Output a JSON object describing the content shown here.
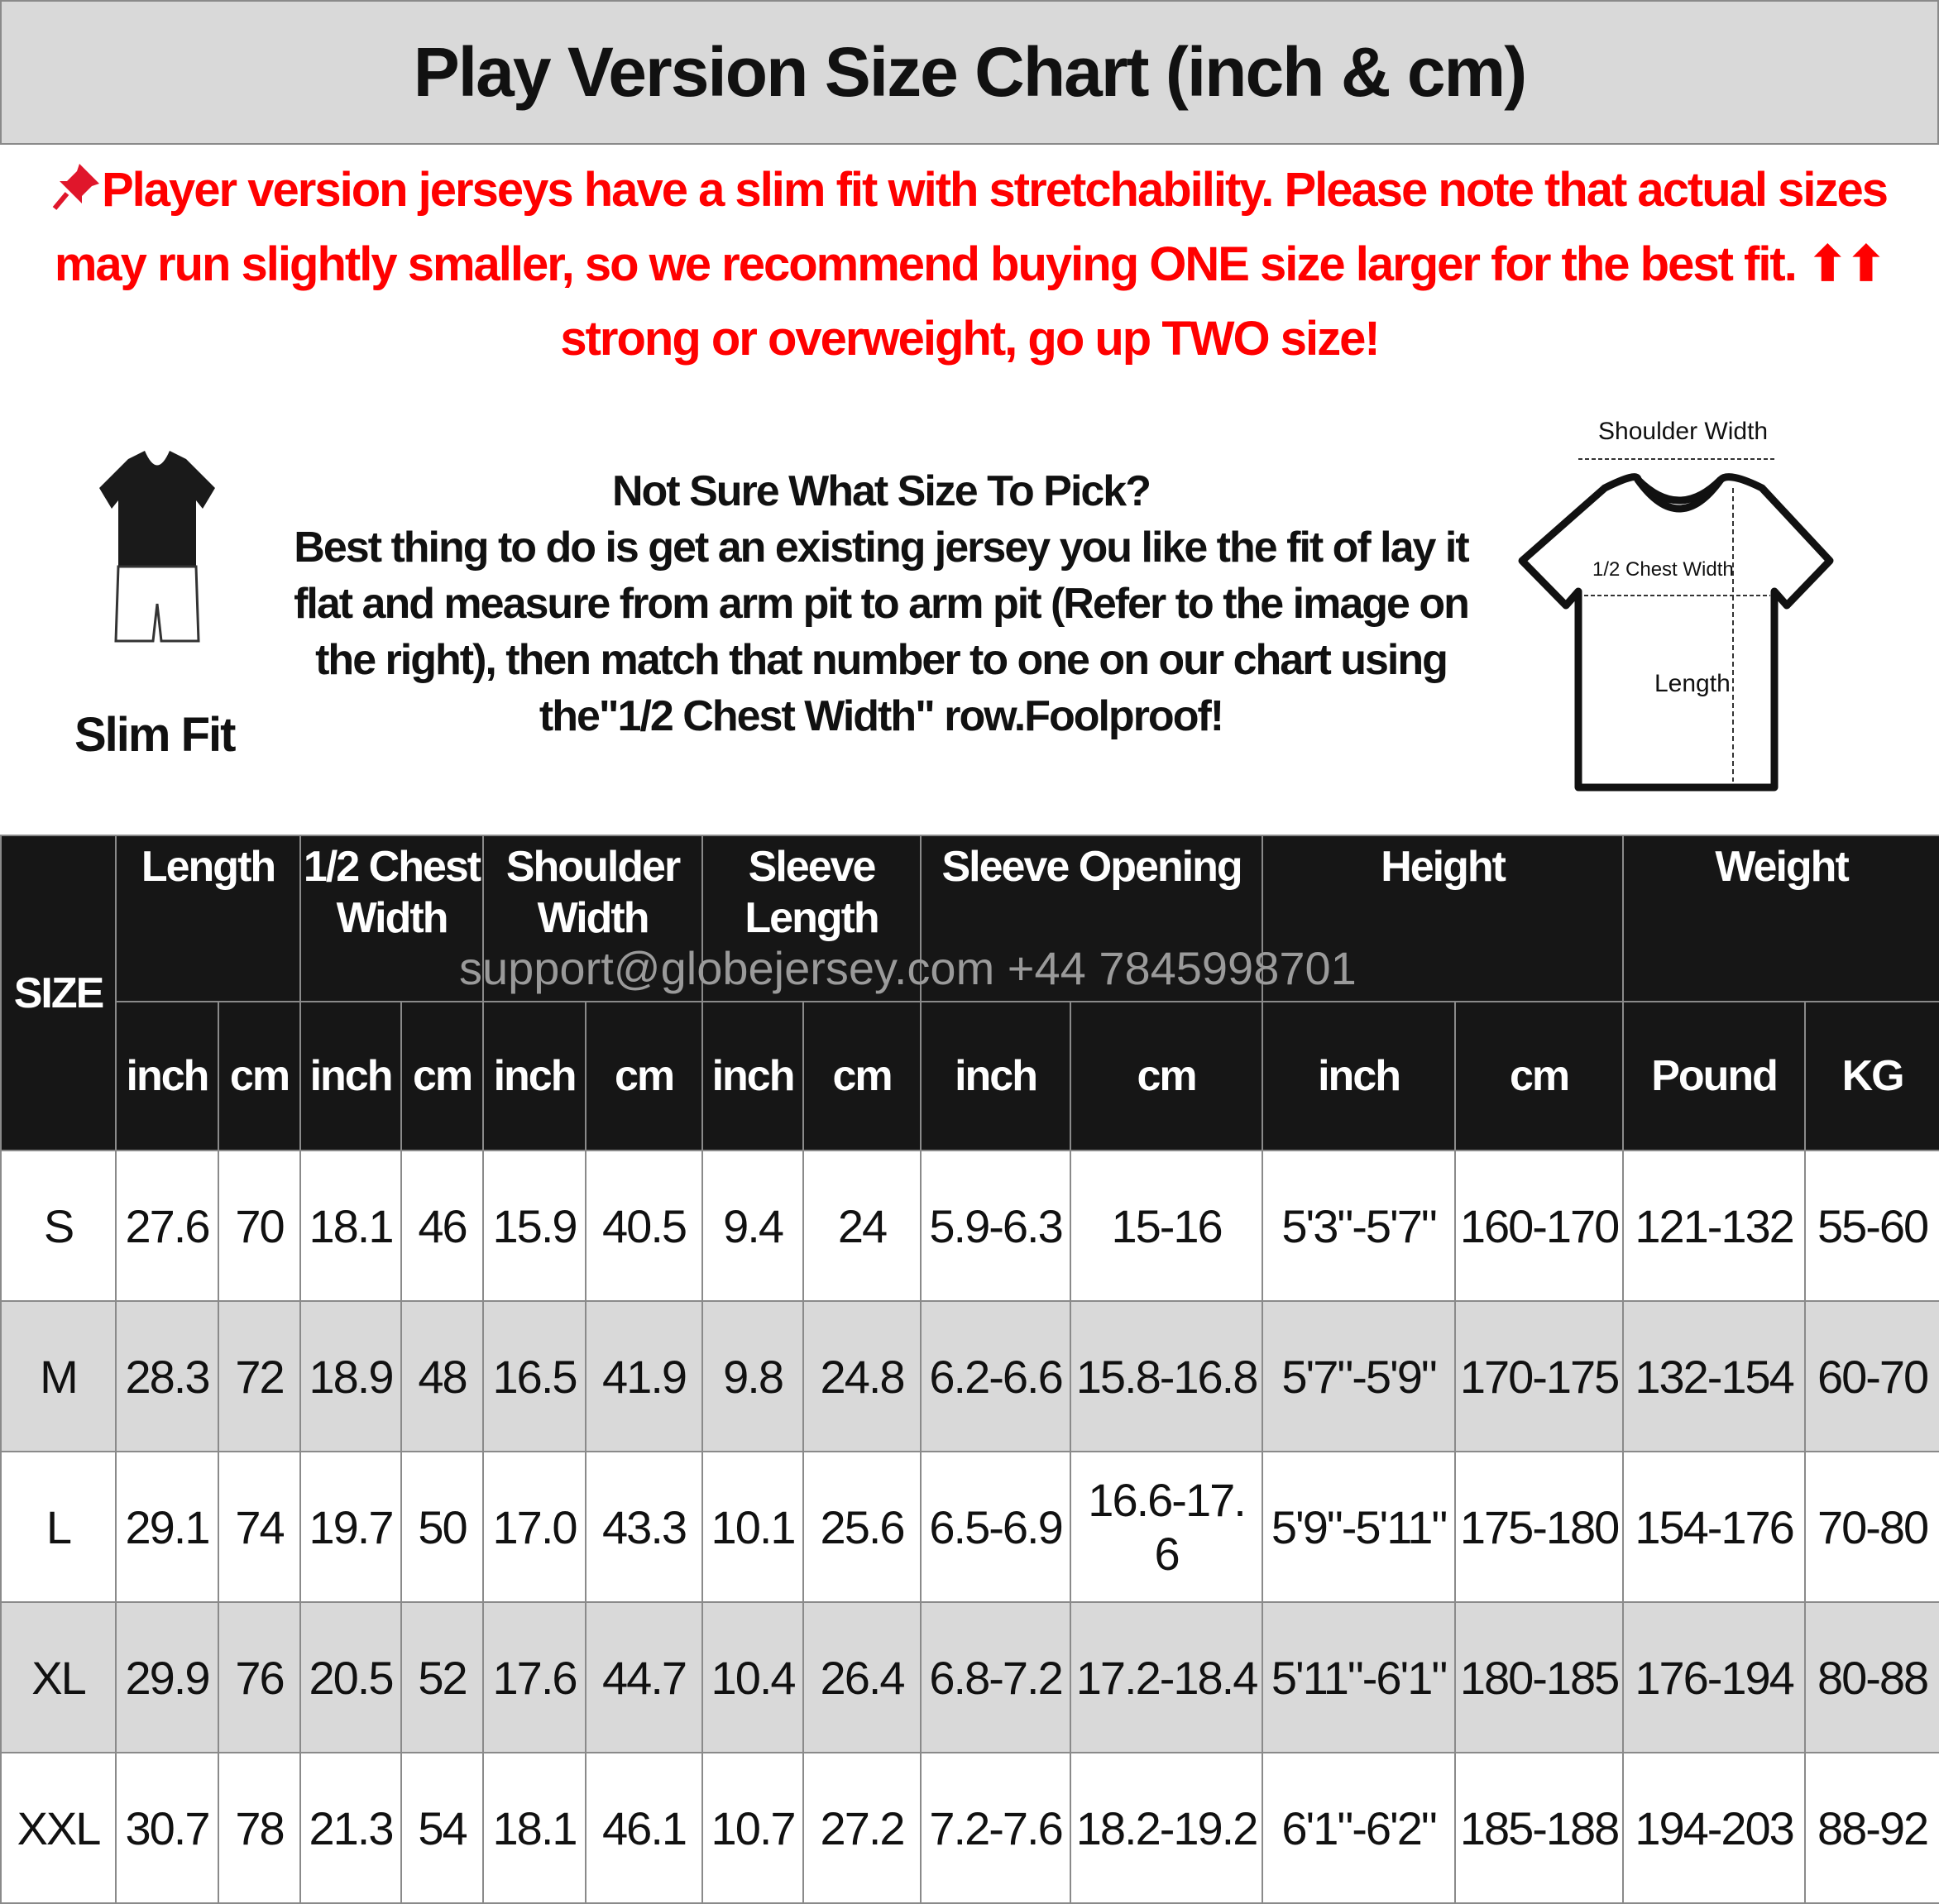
{
  "title": "Play Version Size Chart (inch & cm)",
  "notice": {
    "icon": "pushpin-icon",
    "text": "Player version jerseys have a slim fit with stretchability. Please note that actual sizes may run slightly smaller, so we recommend buying ONE size larger for the best fit. ⬆⬆ strong or overweight, go up TWO size!",
    "color": "#ff0000"
  },
  "slim_fit_label": "Slim Fit",
  "help": {
    "heading": "Not Sure What Size To Pick?",
    "body": "Best thing to do is get an existing jersey you like the fit of lay it flat and measure from arm pit to arm pit (Refer to the image on the right), then match that number to one on our chart using the\"1/2 Chest Width\" row.Foolproof!"
  },
  "diagram": {
    "shoulder": "Shoulder Width",
    "chest": "1/2 Chest Width",
    "length": "Length"
  },
  "watermark": "support@globejersey.com  +44 7845998701",
  "table": {
    "size_header": "SIZE",
    "groups": [
      {
        "label": "Length",
        "span": 2
      },
      {
        "label": "1/2 Chest Width",
        "span": 2
      },
      {
        "label": "Shoulder Width",
        "span": 2
      },
      {
        "label": "Sleeve Length",
        "span": 2
      },
      {
        "label": "Sleeve Opening",
        "span": 2
      },
      {
        "label": "Height",
        "span": 2
      },
      {
        "label": "Weight",
        "span": 2
      }
    ],
    "units": [
      "inch",
      "cm",
      "inch",
      "cm",
      "inch",
      "cm",
      "inch",
      "cm",
      "inch",
      "cm",
      "inch",
      "cm",
      "Pound",
      "KG"
    ],
    "rows": [
      [
        "S",
        "27.6",
        "70",
        "18.1",
        "46",
        "15.9",
        "40.5",
        "9.4",
        "24",
        "5.9-6.3",
        "15-16",
        "5'3\"-5'7\"",
        "160-170",
        "121-132",
        "55-60"
      ],
      [
        "M",
        "28.3",
        "72",
        "18.9",
        "48",
        "16.5",
        "41.9",
        "9.8",
        "24.8",
        "6.2-6.6",
        "15.8-16.8",
        "5'7\"-5'9\"",
        "170-175",
        "132-154",
        "60-70"
      ],
      [
        "L",
        "29.1",
        "74",
        "19.7",
        "50",
        "17.0",
        "43.3",
        "10.1",
        "25.6",
        "6.5-6.9",
        "16.6-17. 6",
        "5'9\"-5'11\"",
        "175-180",
        "154-176",
        "70-80"
      ],
      [
        "XL",
        "29.9",
        "76",
        "20.5",
        "52",
        "17.6",
        "44.7",
        "10.4",
        "26.4",
        "6.8-7.2",
        "17.2-18.4",
        "5'11\"-6'1\"",
        "180-185",
        "176-194",
        "80-88"
      ],
      [
        "XXL",
        "30.7",
        "78",
        "21.3",
        "54",
        "18.1",
        "46.1",
        "10.7",
        "27.2",
        "7.2-7.6",
        "18.2-19.2",
        "6'1\"-6'2\"",
        "185-188",
        "194-203",
        "88-92"
      ]
    ]
  }
}
